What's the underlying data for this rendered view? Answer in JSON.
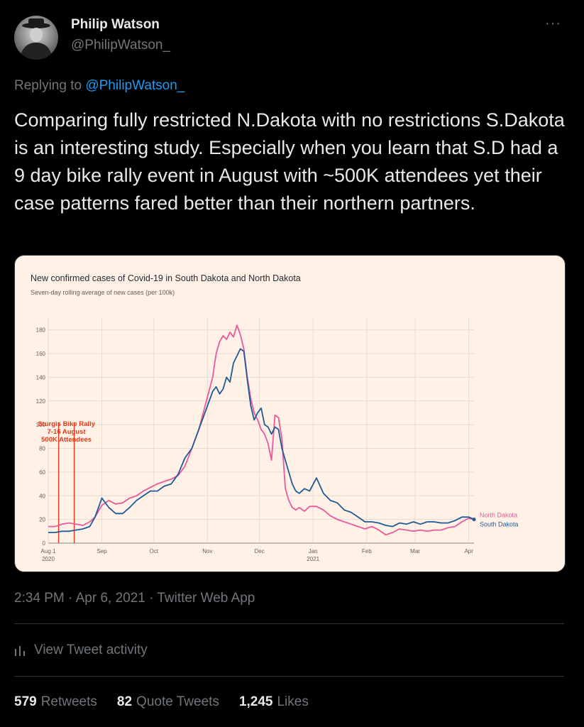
{
  "tweet": {
    "display_name": "Philip Watson",
    "handle": "@PhilipWatson_",
    "replying_prefix": "Replying to",
    "replying_to": "@PhilipWatson_",
    "text": "Comparing fully restricted N.Dakota with no restrictions S.Dakota is an interesting study. Especially when you learn that S.D had a 9 day bike rally event in August with ~500K attendees yet their case patterns fared better than their northern partners.",
    "timestamp": "2:34 PM · Apr 6, 2021 · Twitter Web App",
    "more_label": "···",
    "activity_label": "View Tweet activity",
    "stats": {
      "retweets_count": "579",
      "retweets_label": "Retweets",
      "quotes_count": "82",
      "quotes_label": "Quote Tweets",
      "likes_count": "1,245",
      "likes_label": "Likes"
    }
  },
  "colors": {
    "accent": "#1d9bf0",
    "chart_bg": "#fff1e5",
    "north": "#e8589b",
    "south": "#1f5a96",
    "annotation": "#e8381a"
  },
  "chart_data": {
    "type": "line",
    "title": "New confirmed cases of Covid-19 in South Dakota and North Dakota",
    "subtitle": "Seven-day rolling average of new cases (per 100k)",
    "x_unit": "days since Aug 1 2020",
    "ylim": [
      0,
      190
    ],
    "yticks": [
      0,
      20,
      40,
      60,
      80,
      100,
      120,
      140,
      160,
      180
    ],
    "xticks": [
      {
        "day": 0,
        "label": "Aug 1",
        "sub": "2020"
      },
      {
        "day": 31,
        "label": "Sep",
        "sub": ""
      },
      {
        "day": 61,
        "label": "Oct",
        "sub": ""
      },
      {
        "day": 92,
        "label": "Nov",
        "sub": ""
      },
      {
        "day": 122,
        "label": "Dec",
        "sub": ""
      },
      {
        "day": 153,
        "label": "Jan",
        "sub": "2021"
      },
      {
        "day": 184,
        "label": "Feb",
        "sub": ""
      },
      {
        "day": 212,
        "label": "Mar",
        "sub": ""
      },
      {
        "day": 243,
        "label": "Apr",
        "sub": ""
      }
    ],
    "xlim": [
      0,
      246
    ],
    "annotation": {
      "lines_at": [
        6,
        15
      ],
      "text": [
        "Sturgis Bike Rally",
        "7-16 August",
        "500K Attendees"
      ]
    },
    "series": [
      {
        "name": "North Dakota",
        "color": "#e8589b",
        "x": [
          0,
          4,
          8,
          12,
          16,
          20,
          24,
          27,
          31,
          35,
          39,
          43,
          47,
          51,
          55,
          59,
          63,
          67,
          71,
          75,
          79,
          83,
          87,
          91,
          95,
          97,
          99,
          101,
          103,
          105,
          107,
          109,
          111,
          113,
          115,
          117,
          119,
          121,
          123,
          125,
          127,
          129,
          131,
          133,
          135,
          137,
          139,
          141,
          143,
          145,
          148,
          151,
          155,
          159,
          163,
          167,
          171,
          175,
          179,
          183,
          187,
          191,
          195,
          199,
          203,
          207,
          211,
          215,
          219,
          223,
          227,
          231,
          235,
          239,
          243,
          246
        ],
        "y": [
          14,
          14,
          16,
          17,
          16,
          15,
          18,
          22,
          32,
          36,
          33,
          34,
          38,
          40,
          44,
          47,
          50,
          52,
          54,
          57,
          65,
          80,
          96,
          118,
          140,
          160,
          170,
          175,
          172,
          178,
          174,
          184,
          176,
          164,
          140,
          122,
          110,
          104,
          96,
          92,
          84,
          70,
          108,
          106,
          88,
          46,
          36,
          30,
          28,
          30,
          27,
          31,
          31,
          28,
          23,
          20,
          18,
          16,
          14,
          12,
          14,
          11,
          7,
          9,
          12,
          11,
          10,
          11,
          10,
          11,
          11,
          13,
          14,
          18,
          21,
          20
        ]
      },
      {
        "name": "South Dakota",
        "color": "#1f5a96",
        "x": [
          0,
          4,
          8,
          12,
          16,
          20,
          24,
          27,
          31,
          35,
          39,
          43,
          47,
          51,
          55,
          59,
          63,
          67,
          71,
          75,
          79,
          83,
          87,
          91,
          95,
          97,
          99,
          101,
          103,
          105,
          107,
          109,
          111,
          113,
          115,
          117,
          119,
          121,
          123,
          125,
          127,
          129,
          131,
          133,
          135,
          137,
          139,
          141,
          143,
          145,
          148,
          151,
          155,
          159,
          163,
          167,
          171,
          175,
          179,
          183,
          187,
          191,
          195,
          199,
          203,
          207,
          211,
          215,
          219,
          223,
          227,
          231,
          235,
          239,
          243,
          246
        ],
        "y": [
          9,
          9,
          10,
          10,
          11,
          12,
          14,
          22,
          38,
          30,
          25,
          25,
          30,
          36,
          40,
          44,
          44,
          48,
          50,
          58,
          72,
          80,
          96,
          112,
          128,
          132,
          126,
          130,
          140,
          136,
          152,
          158,
          164,
          162,
          138,
          116,
          104,
          110,
          114,
          100,
          98,
          92,
          98,
          96,
          80,
          70,
          60,
          50,
          44,
          42,
          46,
          44,
          55,
          42,
          36,
          34,
          28,
          26,
          22,
          18,
          18,
          17,
          15,
          14,
          17,
          16,
          18,
          16,
          18,
          18,
          17,
          17,
          19,
          22,
          22,
          20
        ]
      }
    ]
  }
}
